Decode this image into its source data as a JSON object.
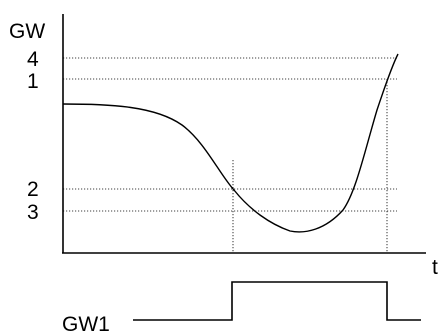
{
  "diagram": {
    "y_axis_label": "GW",
    "x_axis_label": "t",
    "levels": [
      {
        "label": "4",
        "key": "level-4"
      },
      {
        "label": "1",
        "key": "level-1"
      },
      {
        "label": "2",
        "key": "level-2"
      },
      {
        "label": "3",
        "key": "level-3"
      }
    ],
    "signal_label": "GW1",
    "colors": {
      "line": "#000000",
      "guide": "#000000",
      "background": "#ffffff"
    }
  }
}
